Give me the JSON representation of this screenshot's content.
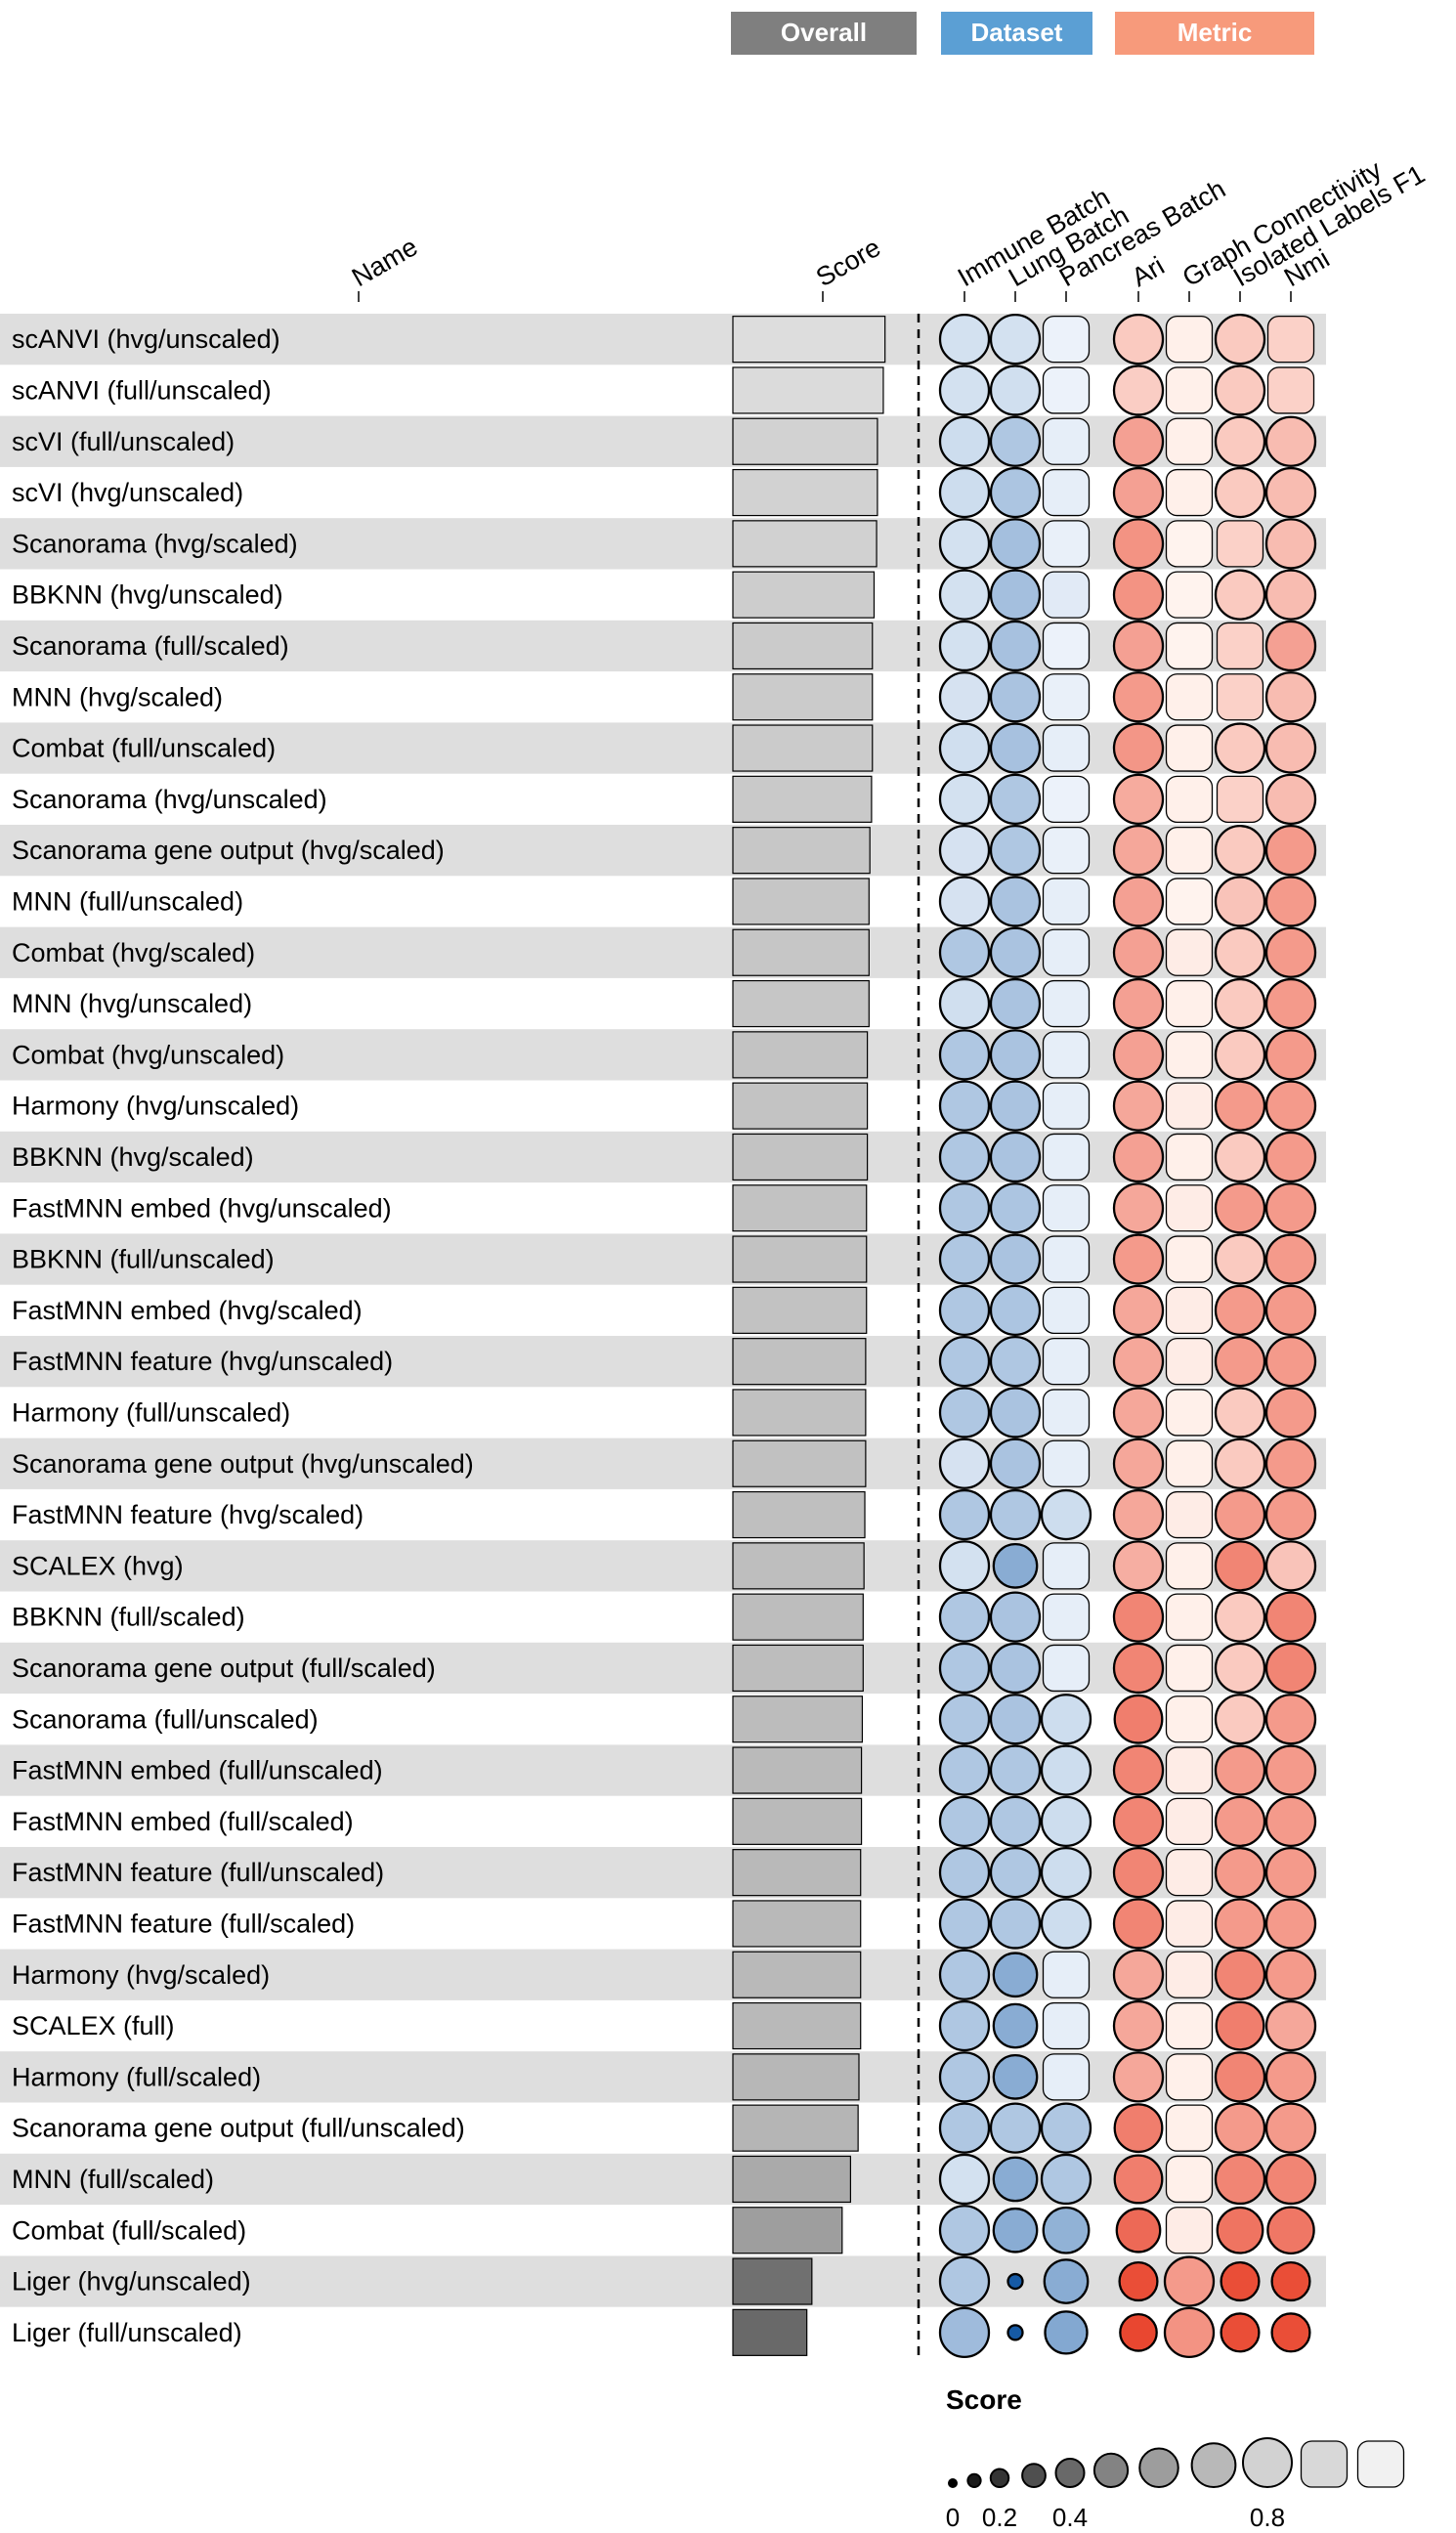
{
  "header_legend": [
    {
      "label": "Overall",
      "color": "#7f7f7f"
    },
    {
      "label": "Dataset",
      "color": "#5b9fd4"
    },
    {
      "label": "Metric",
      "color": "#f79a7b"
    }
  ],
  "chart_data": {
    "type": "table",
    "columns": {
      "name": "Name",
      "score": "Score",
      "dataset": [
        "Immune Batch",
        "Lung Batch",
        "Pancreas Batch"
      ],
      "metric": [
        "Ari",
        "Graph Connectivity",
        "Isolated Labels F1",
        "Nmi"
      ]
    },
    "rows": [
      {
        "name": "scANVI (hvg/unscaled)",
        "score": 0.905,
        "dataset": [
          0.79,
          0.79,
          0.88
        ],
        "metric": [
          0.8,
          0.91,
          0.8,
          0.82
        ]
      },
      {
        "name": "scANVI (full/unscaled)",
        "score": 0.895,
        "dataset": [
          0.79,
          0.78,
          0.88
        ],
        "metric": [
          0.81,
          0.91,
          0.8,
          0.82
        ]
      },
      {
        "name": "scVI (full/unscaled)",
        "score": 0.86,
        "dataset": [
          0.77,
          0.66,
          0.86
        ],
        "metric": [
          0.68,
          0.91,
          0.8,
          0.76
        ]
      },
      {
        "name": "scVI (hvg/unscaled)",
        "score": 0.86,
        "dataset": [
          0.77,
          0.65,
          0.86
        ],
        "metric": [
          0.68,
          0.91,
          0.8,
          0.76
        ]
      },
      {
        "name": "Scanorama (hvg/scaled)",
        "score": 0.855,
        "dataset": [
          0.79,
          0.62,
          0.87
        ],
        "metric": [
          0.64,
          0.92,
          0.82,
          0.76
        ]
      },
      {
        "name": "BBKNN (hvg/unscaled)",
        "score": 0.84,
        "dataset": [
          0.79,
          0.62,
          0.84
        ],
        "metric": [
          0.64,
          0.92,
          0.8,
          0.76
        ]
      },
      {
        "name": "Scanorama (full/scaled)",
        "score": 0.83,
        "dataset": [
          0.79,
          0.63,
          0.88
        ],
        "metric": [
          0.68,
          0.92,
          0.82,
          0.68
        ]
      },
      {
        "name": "MNN (hvg/scaled)",
        "score": 0.83,
        "dataset": [
          0.8,
          0.64,
          0.87
        ],
        "metric": [
          0.66,
          0.91,
          0.82,
          0.76
        ]
      },
      {
        "name": "Combat (full/unscaled)",
        "score": 0.83,
        "dataset": [
          0.78,
          0.63,
          0.86
        ],
        "metric": [
          0.65,
          0.91,
          0.8,
          0.76
        ]
      },
      {
        "name": "Scanorama (hvg/unscaled)",
        "score": 0.825,
        "dataset": [
          0.79,
          0.66,
          0.88
        ],
        "metric": [
          0.71,
          0.91,
          0.82,
          0.76
        ]
      },
      {
        "name": "Scanorama gene output (hvg/scaled)",
        "score": 0.815,
        "dataset": [
          0.8,
          0.66,
          0.87
        ],
        "metric": [
          0.7,
          0.91,
          0.8,
          0.66
        ]
      },
      {
        "name": "MNN (full/unscaled)",
        "score": 0.81,
        "dataset": [
          0.8,
          0.64,
          0.86
        ],
        "metric": [
          0.68,
          0.92,
          0.78,
          0.66
        ]
      },
      {
        "name": "Combat (hvg/scaled)",
        "score": 0.81,
        "dataset": [
          0.66,
          0.64,
          0.86
        ],
        "metric": [
          0.68,
          0.9,
          0.8,
          0.66
        ]
      },
      {
        "name": "MNN (hvg/unscaled)",
        "score": 0.81,
        "dataset": [
          0.78,
          0.64,
          0.86
        ],
        "metric": [
          0.68,
          0.91,
          0.8,
          0.66
        ]
      },
      {
        "name": "Combat (hvg/unscaled)",
        "score": 0.8,
        "dataset": [
          0.66,
          0.64,
          0.86
        ],
        "metric": [
          0.68,
          0.91,
          0.8,
          0.66
        ]
      },
      {
        "name": "Harmony (hvg/unscaled)",
        "score": 0.8,
        "dataset": [
          0.66,
          0.64,
          0.86
        ],
        "metric": [
          0.7,
          0.9,
          0.66,
          0.66
        ]
      },
      {
        "name": "BBKNN (hvg/scaled)",
        "score": 0.8,
        "dataset": [
          0.66,
          0.64,
          0.86
        ],
        "metric": [
          0.68,
          0.91,
          0.8,
          0.66
        ]
      },
      {
        "name": "FastMNN embed (hvg/unscaled)",
        "score": 0.795,
        "dataset": [
          0.66,
          0.65,
          0.86
        ],
        "metric": [
          0.7,
          0.9,
          0.66,
          0.66
        ]
      },
      {
        "name": "BBKNN (full/unscaled)",
        "score": 0.795,
        "dataset": [
          0.66,
          0.64,
          0.86
        ],
        "metric": [
          0.66,
          0.91,
          0.8,
          0.66
        ]
      },
      {
        "name": "FastMNN embed (hvg/scaled)",
        "score": 0.795,
        "dataset": [
          0.66,
          0.65,
          0.86
        ],
        "metric": [
          0.7,
          0.9,
          0.66,
          0.66
        ]
      },
      {
        "name": "FastMNN feature (hvg/unscaled)",
        "score": 0.79,
        "dataset": [
          0.66,
          0.66,
          0.86
        ],
        "metric": [
          0.7,
          0.9,
          0.66,
          0.66
        ]
      },
      {
        "name": "Harmony (full/unscaled)",
        "score": 0.79,
        "dataset": [
          0.66,
          0.64,
          0.86
        ],
        "metric": [
          0.7,
          0.91,
          0.8,
          0.66
        ]
      },
      {
        "name": "Scanorama gene output (hvg/unscaled)",
        "score": 0.79,
        "dataset": [
          0.8,
          0.64,
          0.86
        ],
        "metric": [
          0.7,
          0.91,
          0.8,
          0.66
        ]
      },
      {
        "name": "FastMNN feature (hvg/scaled)",
        "score": 0.785,
        "dataset": [
          0.66,
          0.66,
          0.77
        ],
        "metric": [
          0.7,
          0.9,
          0.66,
          0.66
        ]
      },
      {
        "name": "SCALEX (hvg)",
        "score": 0.78,
        "dataset": [
          0.79,
          0.52,
          0.86
        ],
        "metric": [
          0.72,
          0.91,
          0.6,
          0.78
        ]
      },
      {
        "name": "BBKNN (full/scaled)",
        "score": 0.775,
        "dataset": [
          0.66,
          0.64,
          0.86
        ],
        "metric": [
          0.6,
          0.91,
          0.8,
          0.6
        ]
      },
      {
        "name": "Scanorama gene output (full/scaled)",
        "score": 0.775,
        "dataset": [
          0.66,
          0.64,
          0.86
        ],
        "metric": [
          0.6,
          0.91,
          0.8,
          0.6
        ]
      },
      {
        "name": "Scanorama (full/unscaled)",
        "score": 0.77,
        "dataset": [
          0.66,
          0.64,
          0.77
        ],
        "metric": [
          0.58,
          0.91,
          0.8,
          0.66
        ]
      },
      {
        "name": "FastMNN embed (full/unscaled)",
        "score": 0.765,
        "dataset": [
          0.66,
          0.66,
          0.77
        ],
        "metric": [
          0.6,
          0.9,
          0.66,
          0.66
        ]
      },
      {
        "name": "FastMNN embed (full/scaled)",
        "score": 0.765,
        "dataset": [
          0.66,
          0.66,
          0.77
        ],
        "metric": [
          0.6,
          0.9,
          0.66,
          0.66
        ]
      },
      {
        "name": "FastMNN feature (full/unscaled)",
        "score": 0.76,
        "dataset": [
          0.66,
          0.66,
          0.77
        ],
        "metric": [
          0.6,
          0.9,
          0.66,
          0.66
        ]
      },
      {
        "name": "FastMNN feature (full/scaled)",
        "score": 0.76,
        "dataset": [
          0.66,
          0.66,
          0.77
        ],
        "metric": [
          0.6,
          0.9,
          0.66,
          0.66
        ]
      },
      {
        "name": "Harmony (hvg/scaled)",
        "score": 0.76,
        "dataset": [
          0.66,
          0.52,
          0.86
        ],
        "metric": [
          0.7,
          0.9,
          0.6,
          0.66
        ]
      },
      {
        "name": "SCALEX (full)",
        "score": 0.76,
        "dataset": [
          0.66,
          0.52,
          0.86
        ],
        "metric": [
          0.7,
          0.91,
          0.58,
          0.7
        ]
      },
      {
        "name": "Harmony (full/scaled)",
        "score": 0.75,
        "dataset": [
          0.66,
          0.52,
          0.86
        ],
        "metric": [
          0.7,
          0.91,
          0.6,
          0.66
        ]
      },
      {
        "name": "Scanorama gene output (full/unscaled)",
        "score": 0.745,
        "dataset": [
          0.66,
          0.66,
          0.66
        ],
        "metric": [
          0.58,
          0.91,
          0.66,
          0.66
        ]
      },
      {
        "name": "MNN (full/scaled)",
        "score": 0.7,
        "dataset": [
          0.79,
          0.52,
          0.66
        ],
        "metric": [
          0.58,
          0.91,
          0.6,
          0.6
        ]
      },
      {
        "name": "Combat (full/scaled)",
        "score": 0.65,
        "dataset": [
          0.66,
          0.52,
          0.55
        ],
        "metric": [
          0.52,
          0.9,
          0.55,
          0.56
        ]
      },
      {
        "name": "Liger (hvg/unscaled)",
        "score": 0.47,
        "dataset": [
          0.66,
          0.1,
          0.52
        ],
        "metric": [
          0.44,
          0.66,
          0.44,
          0.44
        ]
      },
      {
        "name": "Liger (full/unscaled)",
        "score": 0.44,
        "dataset": [
          0.6,
          0.1,
          0.5
        ],
        "metric": [
          0.42,
          0.64,
          0.44,
          0.44
        ]
      }
    ],
    "legend": {
      "title": "Score",
      "steps": [
        0,
        0.1,
        0.2,
        0.3,
        0.4,
        0.5,
        0.6,
        0.7,
        0.8,
        0.9,
        1.0
      ],
      "tick_labels": [
        {
          "value": 0,
          "label": "0"
        },
        {
          "value": 0.2,
          "label": "0.2"
        },
        {
          "value": 0.4,
          "label": "0.4"
        },
        {
          "value": 0.8,
          "label": "0.8"
        }
      ]
    }
  }
}
